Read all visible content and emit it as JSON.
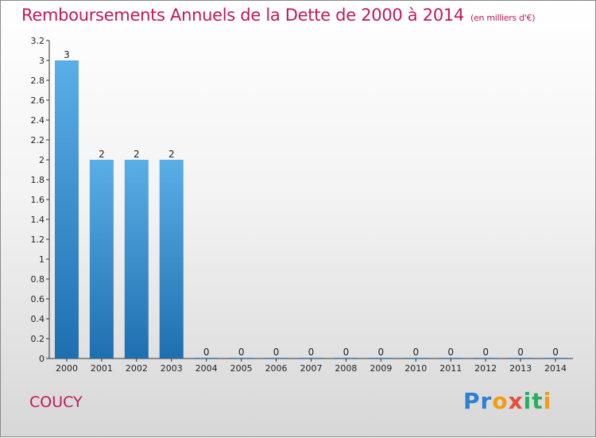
{
  "chart_data": {
    "type": "bar",
    "title": "Remboursements Annuels de la Dette de 2000 à 2014",
    "unit": "(en milliers d'€)",
    "categories": [
      "2000",
      "2001",
      "2002",
      "2003",
      "2004",
      "2005",
      "2006",
      "2007",
      "2008",
      "2009",
      "2010",
      "2011",
      "2012",
      "2013",
      "2014"
    ],
    "values": [
      3,
      2,
      2,
      2,
      0,
      0,
      0,
      0,
      0,
      0,
      0,
      0,
      0,
      0,
      0
    ],
    "value_labels": [
      "3",
      "2",
      "2",
      "2",
      "0",
      "0",
      "0",
      "0",
      "0",
      "0",
      "0",
      "0",
      "0",
      "0",
      "0"
    ],
    "ylim": [
      0,
      3.2
    ],
    "yticks": [
      {
        "value": 0,
        "label": "0"
      },
      {
        "value": 0.2,
        "label": "0.2"
      },
      {
        "value": 0.4,
        "label": "0.4"
      },
      {
        "value": 0.6,
        "label": "0.6"
      },
      {
        "value": 0.8,
        "label": "0.8"
      },
      {
        "value": 1,
        "label": "1"
      },
      {
        "value": 1.2,
        "label": "1.2"
      },
      {
        "value": 1.4,
        "label": "1.4"
      },
      {
        "value": 1.6,
        "label": "1.6"
      },
      {
        "value": 1.8,
        "label": "1.8"
      },
      {
        "value": 2,
        "label": "2"
      },
      {
        "value": 2.2,
        "label": "2.2"
      },
      {
        "value": 2.4,
        "label": "2.4"
      },
      {
        "value": 2.6,
        "label": "2.6"
      },
      {
        "value": 2.8,
        "label": "2.8"
      },
      {
        "value": 3,
        "label": "3"
      },
      {
        "value": 3.2,
        "label": "3.2"
      }
    ],
    "grid": false,
    "bar_color_top": "#5aaee6",
    "bar_color_bottom": "#1f6fb0"
  },
  "footer": {
    "commune": "COUCY",
    "logo_letters": [
      {
        "ch": "P",
        "color": "#2e7fd1"
      },
      {
        "ch": "r",
        "color": "#2e7fd1"
      },
      {
        "ch": "o",
        "color": "#f39c12"
      },
      {
        "ch": "x",
        "color": "#e74c3c"
      },
      {
        "ch": "i",
        "color": "#27ae60"
      },
      {
        "ch": "t",
        "color": "#27ae60"
      },
      {
        "ch": "i",
        "color": "#f39c12"
      }
    ]
  },
  "colors": {
    "title": "#c2185b",
    "axis": "#333333"
  }
}
